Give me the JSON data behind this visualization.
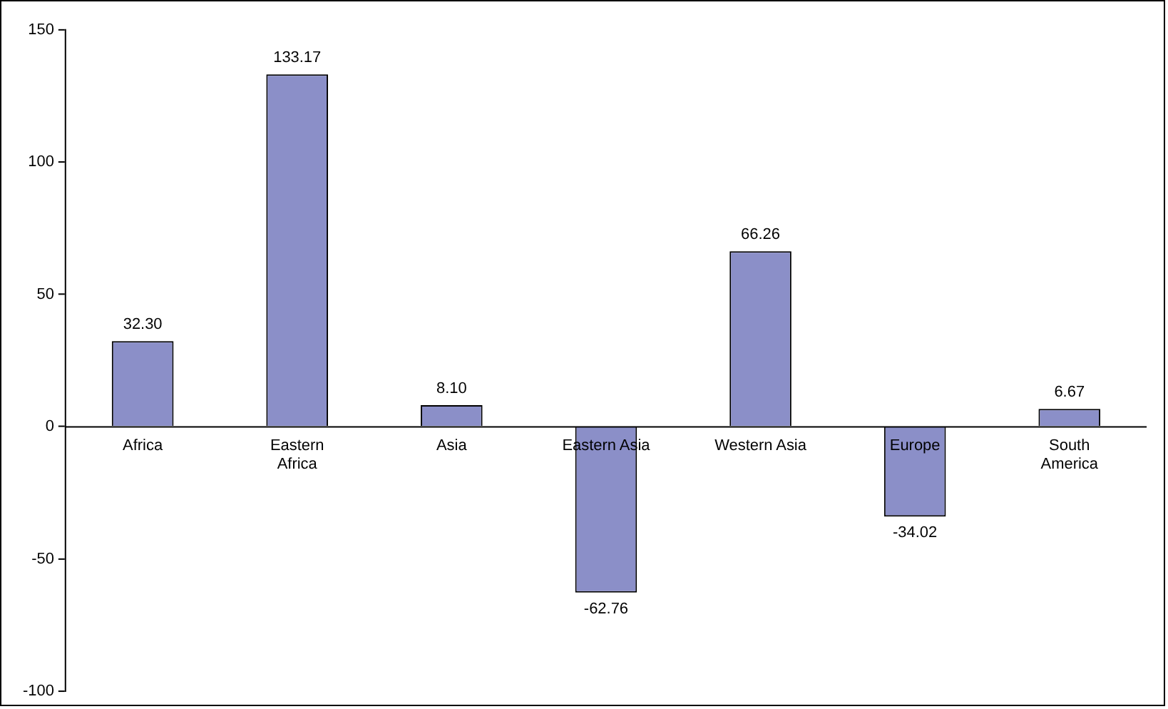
{
  "chart_data": {
    "type": "bar",
    "categories": [
      "Africa",
      "Eastern Africa",
      "Asia",
      "Eastern Asia",
      "Western Asia",
      "Europe",
      "South America"
    ],
    "values": [
      32.3,
      133.17,
      8.1,
      -62.76,
      66.26,
      -34.02,
      6.67
    ],
    "value_labels": [
      "32.30",
      "133.17",
      "8.10",
      "-62.76",
      "66.26",
      "-34.02",
      "6.67"
    ],
    "color": "#8b8fc8",
    "ylim": [
      -100,
      150
    ],
    "yticks": [
      -100,
      -50,
      0,
      50,
      100,
      150
    ],
    "grid": false,
    "legend": false
  }
}
